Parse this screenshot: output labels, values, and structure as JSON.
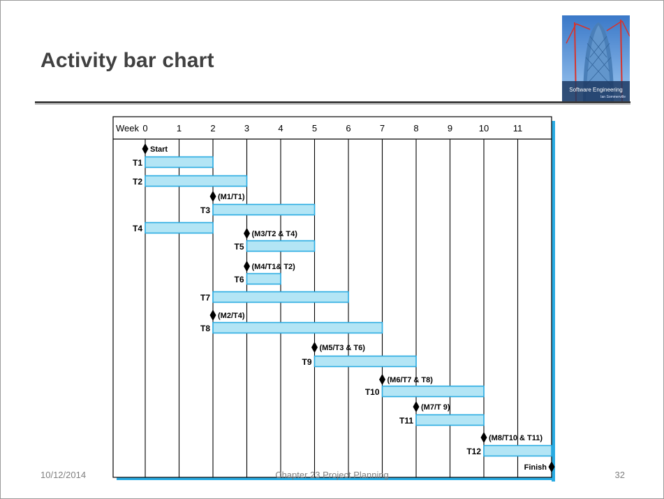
{
  "slide": {
    "title": "Activity bar chart",
    "footer_date": "10/12/2014",
    "footer_chapter": "Chapter 23 Project Planning",
    "footer_page": "32"
  },
  "book_cover": {
    "title": "Software Engineering",
    "author": "Ian Sommerville"
  },
  "chart_data": {
    "type": "gantt",
    "x_header_label": "Week",
    "x_ticks": [
      0,
      1,
      2,
      3,
      4,
      5,
      6,
      7,
      8,
      9,
      10,
      11
    ],
    "x_range": [
      0,
      12
    ],
    "rows": [
      {
        "kind": "milestone",
        "label": "Start",
        "at": 0,
        "label_side": "right"
      },
      {
        "kind": "task",
        "label": "T1",
        "start": 0,
        "end": 2
      },
      {
        "kind": "task",
        "label": "T2",
        "start": 0,
        "end": 3
      },
      {
        "kind": "milestone",
        "label": "(M1/T1)",
        "at": 2,
        "label_side": "right"
      },
      {
        "kind": "task",
        "label": "T3",
        "start": 2,
        "end": 5
      },
      {
        "kind": "task",
        "label": "T4",
        "start": 0,
        "end": 2
      },
      {
        "kind": "milestone",
        "label": "(M3/T2 & T4)",
        "at": 3,
        "label_side": "right"
      },
      {
        "kind": "task",
        "label": "T5",
        "start": 3,
        "end": 5
      },
      {
        "kind": "milestone",
        "label": "(M4/T1& T2)",
        "at": 3,
        "label_side": "right"
      },
      {
        "kind": "task",
        "label": "T6",
        "start": 3,
        "end": 4
      },
      {
        "kind": "task",
        "label": "T7",
        "start": 2,
        "end": 6
      },
      {
        "kind": "milestone",
        "label": "(M2/T4)",
        "at": 2,
        "label_side": "right"
      },
      {
        "kind": "task",
        "label": "T8",
        "start": 2,
        "end": 7
      },
      {
        "kind": "milestone",
        "label": "(M5/T3 & T6)",
        "at": 5,
        "label_side": "right"
      },
      {
        "kind": "task",
        "label": "T9",
        "start": 5,
        "end": 8
      },
      {
        "kind": "milestone",
        "label": "(M6/T7 & T8)",
        "at": 7,
        "label_side": "right"
      },
      {
        "kind": "task",
        "label": "T10",
        "start": 7,
        "end": 10
      },
      {
        "kind": "milestone",
        "label": "(M7/T 9)",
        "at": 8,
        "label_side": "right"
      },
      {
        "kind": "task",
        "label": "T11",
        "start": 8,
        "end": 10
      },
      {
        "kind": "milestone",
        "label": "(M8/T10 & T11)",
        "at": 10,
        "label_side": "right"
      },
      {
        "kind": "task",
        "label": "T12",
        "start": 10,
        "end": 12
      },
      {
        "kind": "milestone",
        "label": "Finish",
        "at": 12,
        "label_side": "left"
      }
    ]
  },
  "colors": {
    "bar_fill": "#b3e5f5",
    "bar_stroke": "#29abe2",
    "shadow": "#29abe2",
    "grid": "#000000",
    "milestone": "#000000"
  }
}
